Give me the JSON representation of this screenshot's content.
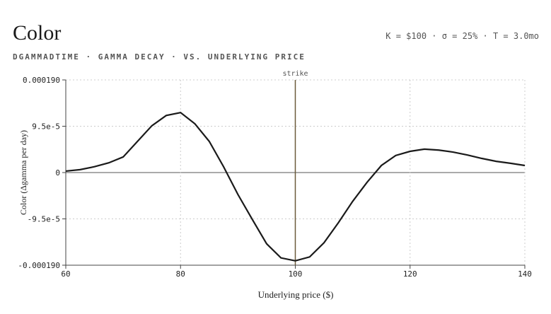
{
  "chart_data": {
    "type": "line",
    "title": "Color",
    "subtitle": "DGAMMADTIME · GAMMA DECAY · VS. UNDERLYING PRICE",
    "params": "K = $100 · σ = 25% · T = 3.0mo",
    "xlabel": "Underlying price ($)",
    "ylabel": "Color (Δgamma per day)",
    "x": [
      60,
      62.5,
      65,
      67.5,
      70,
      72.5,
      75,
      77.5,
      80,
      82.5,
      85,
      87.5,
      90,
      92.5,
      95,
      97.5,
      100,
      102.5,
      105,
      107.5,
      110,
      112.5,
      115,
      117.5,
      120,
      122.5,
      125,
      127.5,
      130,
      132.5,
      135,
      137.5,
      140
    ],
    "series": [
      {
        "name": "Color",
        "color": "#1a1a1a",
        "values": [
          3e-06,
          6e-06,
          1.2e-05,
          2e-05,
          3.2e-05,
          6.4e-05,
          9.6e-05,
          0.000117,
          0.000123,
          0.0001,
          6.4e-05,
          1.2e-05,
          -4.5e-05,
          -9.6e-05,
          -0.000146,
          -0.000175,
          -0.000181,
          -0.000173,
          -0.000144,
          -0.000103,
          -5.9e-05,
          -2e-05,
          1.45e-05,
          3.5e-05,
          4.35e-05,
          4.8e-05,
          4.6e-05,
          4.2e-05,
          3.6e-05,
          2.9e-05,
          2.3e-05,
          1.9e-05,
          1.45e-05
        ]
      }
    ],
    "strike": {
      "x": 100,
      "label": "strike",
      "color": "#6b5a3a"
    },
    "xlim": [
      60,
      140
    ],
    "xticks": [
      60,
      80,
      100,
      120,
      140
    ],
    "ylim": [
      -0.00019,
      0.00019
    ],
    "yticks": [
      {
        "value": -0.00019,
        "label": "-0.000190"
      },
      {
        "value": -9.5e-05,
        "label": "-9.5e-5"
      },
      0,
      {
        "value": 9.5e-05,
        "label": "9.5e-5"
      },
      {
        "value": 0.00019,
        "label": "0.000190"
      }
    ],
    "grid": true
  }
}
